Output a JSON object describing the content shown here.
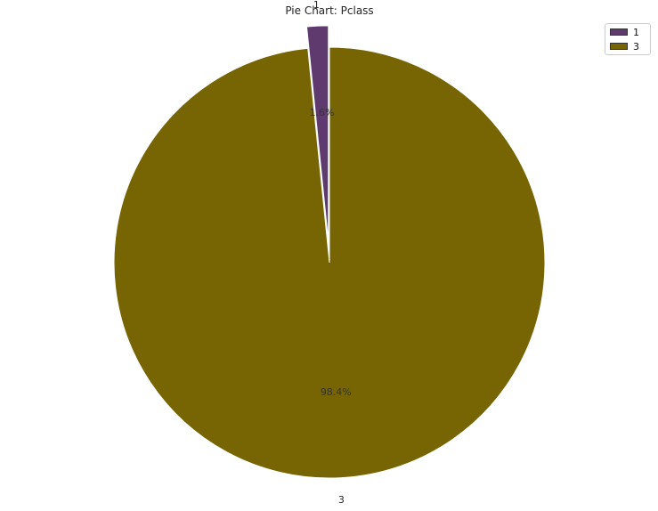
{
  "chart_data": {
    "type": "pie",
    "title": "Pie Chart: Pclass",
    "labels": [
      "1",
      "3"
    ],
    "values": [
      1.6,
      98.4
    ],
    "pct_labels": [
      "1.6%",
      "98.4%"
    ],
    "colors": [
      "#5e3a6e",
      "#776503"
    ],
    "explode": [
      0.1,
      0
    ],
    "start_angle_deg": 90,
    "legend": {
      "position": "top-right",
      "entries": [
        "1",
        "3"
      ]
    }
  }
}
